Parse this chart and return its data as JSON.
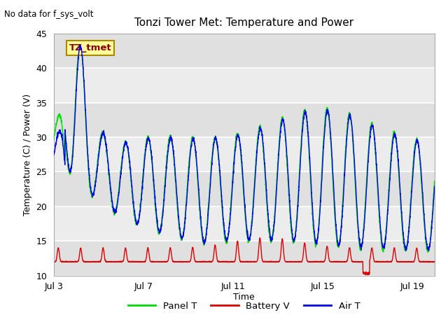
{
  "title": "Tonzi Tower Met: Temperature and Power",
  "no_data_text": "No data for f_sys_volt",
  "legend_box_text": "TZ_tmet",
  "ylabel": "Temperature (C) / Power (V)",
  "xlabel": "Time",
  "xlim_days": [
    0,
    17.0
  ],
  "ylim": [
    10,
    45
  ],
  "yticks": [
    10,
    15,
    20,
    25,
    30,
    35,
    40,
    45
  ],
  "xtick_labels": [
    "Jul 3",
    "Jul 7",
    "Jul 11",
    "Jul 15",
    "Jul 19"
  ],
  "xtick_positions": [
    0,
    4,
    8,
    12,
    16
  ],
  "plot_bg_color": "#e8e8e8",
  "stripe_color": "#d0d0d0",
  "line_green": "#00dd00",
  "line_blue": "#0000ee",
  "line_red": "#dd0000",
  "legend_items": [
    "Panel T",
    "Battery V",
    "Air T"
  ],
  "legend_colors": [
    "#00dd00",
    "#dd0000",
    "#0000ee"
  ],
  "fig_width": 6.4,
  "fig_height": 4.8,
  "dpi": 100
}
